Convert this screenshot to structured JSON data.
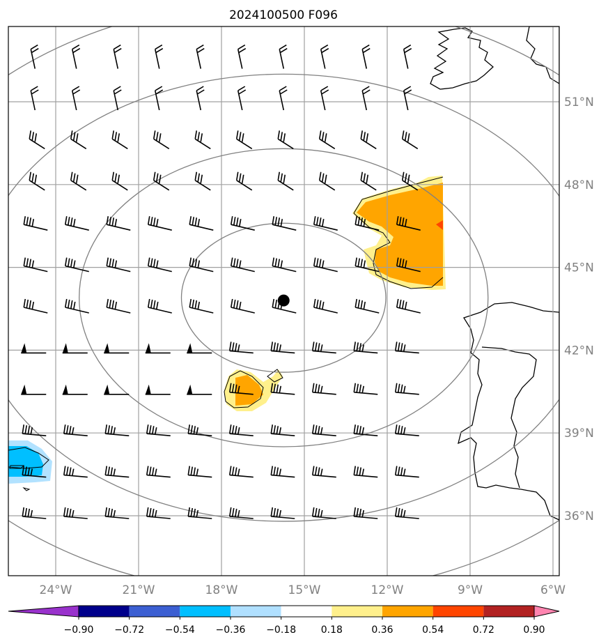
{
  "title": "2024100500 F096",
  "map": {
    "lon_range": [
      -26,
      -6
    ],
    "lat_range": [
      33,
      54
    ],
    "gridline_lons": [
      -24,
      -21,
      -18,
      -15,
      -12,
      -9,
      -6
    ],
    "gridline_lats": [
      36,
      39,
      42,
      45,
      48,
      51
    ],
    "lon_labels": [
      "24°W",
      "21°W",
      "18°W",
      "15°W",
      "12°W",
      "9°W",
      "6°W"
    ],
    "lat_labels": [
      "36°N",
      "39°N",
      "42°N",
      "45°N",
      "48°N",
      "51°N"
    ],
    "center_marker": {
      "lon": -15.75,
      "lat": 43.8,
      "color": "#000000"
    },
    "range_rings": {
      "count": 4,
      "color": "#808080",
      "center_lon": -15.75,
      "center_lat": 43.9,
      "radii_lon": [
        3.7,
        7.4,
        11.2,
        15.0
      ],
      "radii_lat": [
        2.7,
        5.4,
        8.1,
        10.8
      ]
    },
    "wind_barbs": {
      "lons": [
        -24.75,
        -23.25,
        -21.75,
        -20.25,
        -18.75,
        -17.25,
        -15.75,
        -14.25,
        -12.75,
        -11.25
      ],
      "lats": [
        52.5,
        51,
        49.5,
        48,
        46.5,
        45,
        43.5,
        42,
        40.5,
        39,
        37.5,
        36
      ],
      "color": "#000000"
    },
    "shaded_regions": [
      {
        "level": "0.18–0.36",
        "color": "#fff08c"
      },
      {
        "level": "0.36–0.54",
        "color": "#ffa500"
      },
      {
        "level": "0.54–0.72",
        "color": "#ff4500"
      },
      {
        "level": "-0.36–-0.18",
        "color": "#b2e2ff"
      },
      {
        "level": "-0.54–-0.36",
        "color": "#00bfff"
      }
    ]
  },
  "colorbar": {
    "ticks": [
      "−0.90",
      "−0.72",
      "−0.54",
      "−0.36",
      "−0.18",
      "0.18",
      "0.36",
      "0.54",
      "0.72",
      "0.90"
    ],
    "colors": [
      "#9932cc",
      "#00008b",
      "#3c5fd2",
      "#00bfff",
      "#b0e0ff",
      "#ffffff",
      "#fff08c",
      "#ffa500",
      "#ff4500",
      "#b22222",
      "#ff85b0"
    ]
  }
}
